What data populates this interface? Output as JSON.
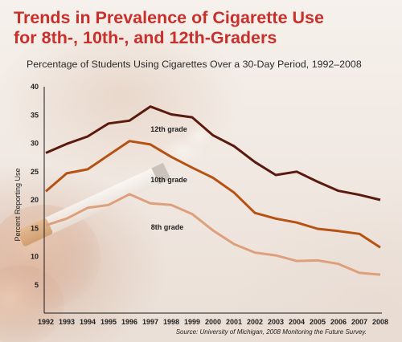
{
  "title_line1": "Trends in Prevalence of Cigarette Use",
  "title_line2": "for 8th-, 10th-, and 12th-Graders",
  "subtitle": "Percentage of Students Using Cigarettes Over a 30-Day Period, 1992–2008",
  "source": "Source: University of Michigan, 2008 Monitoring the Future Survey.",
  "chart_data": {
    "type": "line",
    "ylabel": "Percent Reporting Use",
    "ylim": [
      0,
      40
    ],
    "yticks": [
      5,
      10,
      15,
      20,
      25,
      30,
      35,
      40
    ],
    "x": [
      "1992",
      "1993",
      "1994",
      "1995",
      "1996",
      "1997",
      "1998",
      "1999",
      "2000",
      "2001",
      "2002",
      "2003",
      "2004",
      "2005",
      "2006",
      "2007",
      "2008"
    ],
    "grid": false,
    "series": [
      {
        "name": "12th grade",
        "color": "#5a1a0e",
        "values": [
          28.3,
          29.9,
          31.2,
          33.5,
          34.0,
          36.5,
          35.1,
          34.6,
          31.4,
          29.5,
          26.7,
          24.4,
          25.0,
          23.2,
          21.6,
          20.9,
          20.0
        ]
      },
      {
        "name": "10th grade",
        "color": "#b65214",
        "values": [
          21.5,
          24.7,
          25.4,
          27.9,
          30.4,
          29.8,
          27.6,
          25.7,
          23.9,
          21.3,
          17.7,
          16.7,
          16.0,
          14.9,
          14.5,
          14.0,
          11.6
        ]
      },
      {
        "name": "8th grade",
        "color": "#dea07c",
        "values": [
          15.5,
          16.7,
          18.6,
          19.1,
          21.0,
          19.4,
          19.1,
          17.5,
          14.6,
          12.2,
          10.7,
          10.2,
          9.2,
          9.3,
          8.7,
          7.1,
          6.8
        ]
      }
    ]
  },
  "colors": {
    "title": "#c9302c",
    "axis": "#1a1a1a"
  }
}
